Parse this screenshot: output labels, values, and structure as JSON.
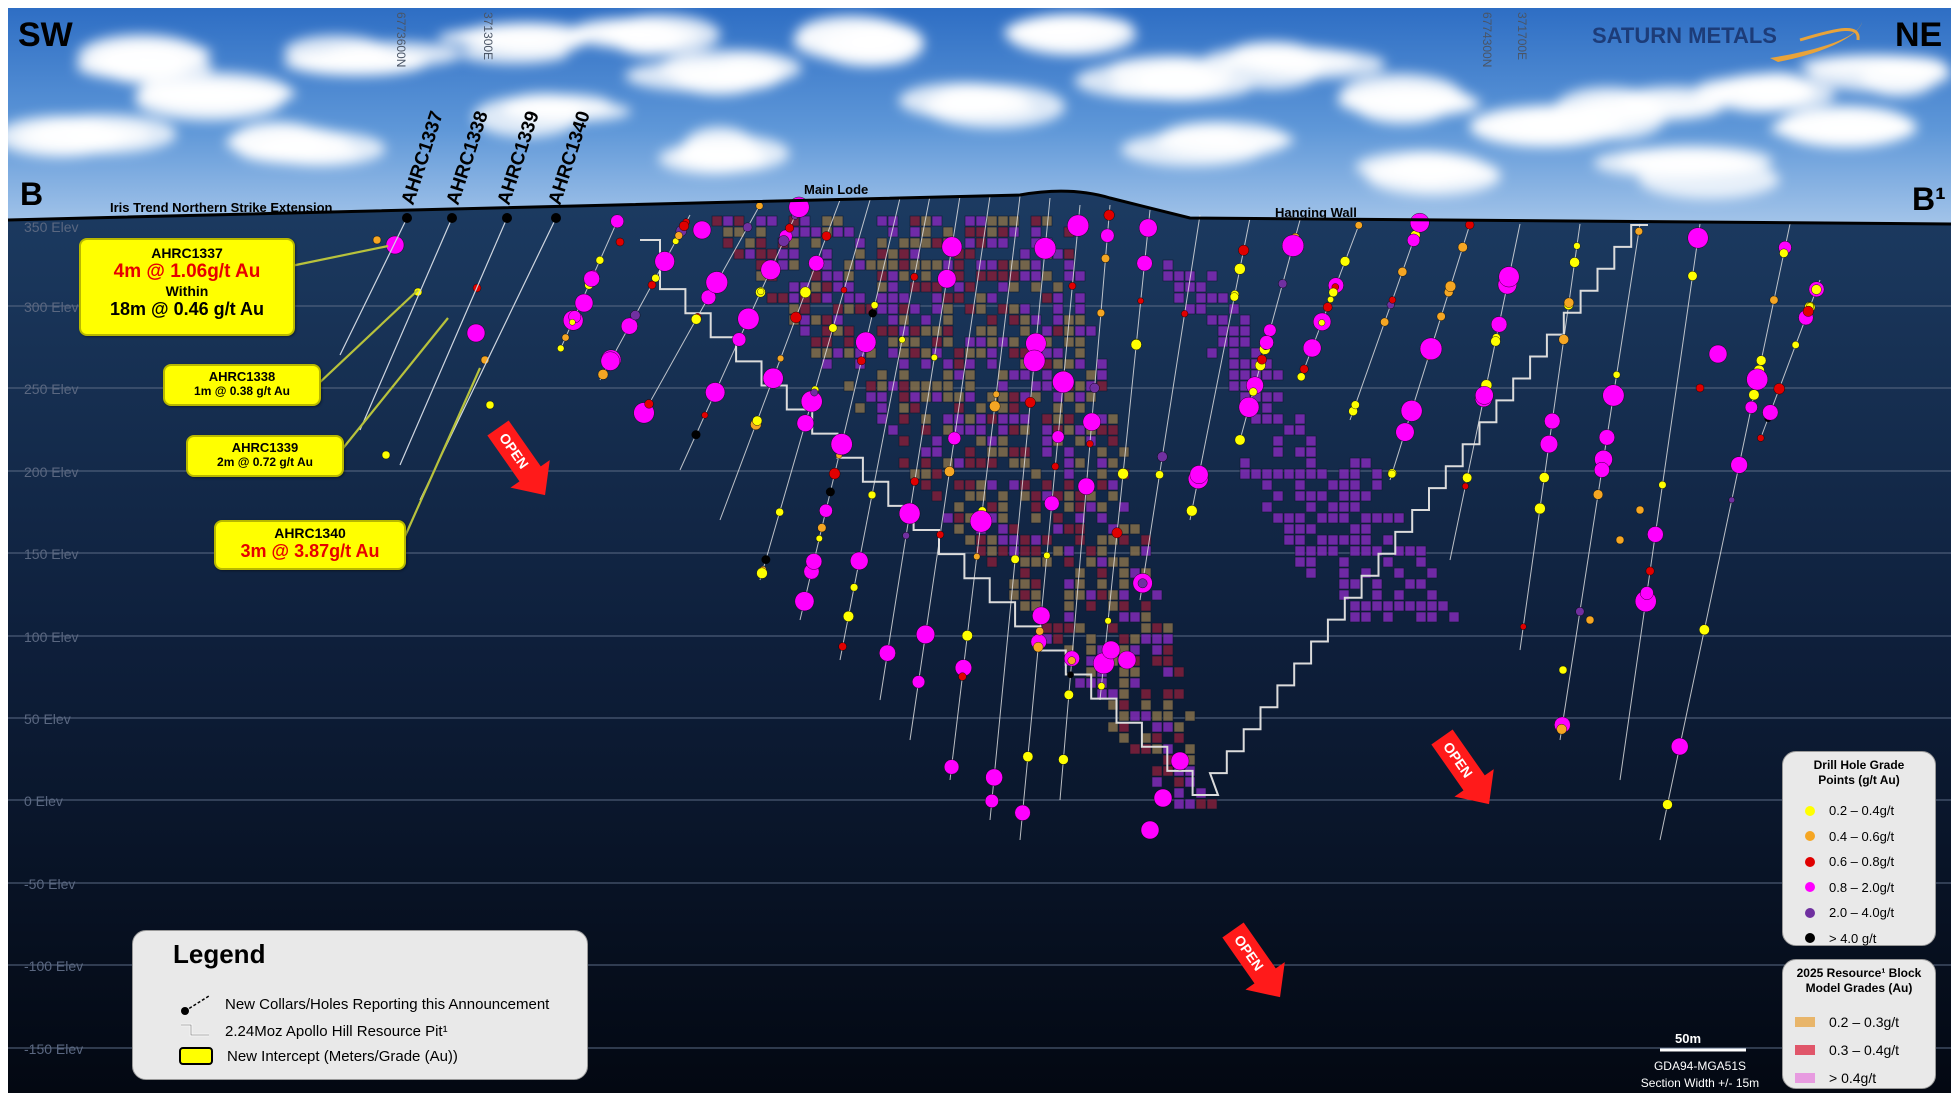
{
  "corners": {
    "left_dir": "SW",
    "right_dir": "NE",
    "section_start": "B",
    "section_end": "B¹"
  },
  "brand": {
    "name": "SATURN METALS",
    "accent": "#e8a33a"
  },
  "northings": [
    "6773600N",
    "371300E",
    "6774300N",
    "371700E"
  ],
  "surface_labels": {
    "iris": "Iris Trend Northern Strike Extension",
    "main_lode": "Main Lode",
    "hanging_wall": "Hanging Wall"
  },
  "holes": [
    "AHRC1337",
    "AHRC1338",
    "AHRC1339",
    "AHRC1340"
  ],
  "elevations": [
    "350 Elev",
    "300 Elev",
    "250 Elev",
    "200 Elev",
    "150 Elev",
    "100 Elev",
    "50 Elev",
    "0 Elev",
    "-50 Elev",
    "-100 Elev",
    "-150 Elev"
  ],
  "callouts": {
    "c1337": {
      "hole": "AHRC1337",
      "line1": "4m @ 1.06g/t Au",
      "within": "Within",
      "line2": "18m @ 0.46 g/t Au"
    },
    "c1338": {
      "hole": "AHRC1338",
      "line1": "1m @ 0.38 g/t Au"
    },
    "c1339": {
      "hole": "AHRC1339",
      "line1": "2m @ 0.72 g/t Au"
    },
    "c1340": {
      "hole": "AHRC1340",
      "line1": "3m @ 3.87g/t Au"
    }
  },
  "open_label": "OPEN",
  "legend": {
    "title": "Legend",
    "items": [
      "New Collars/Holes Reporting this Announcement",
      "2.24Moz Apollo Hill Resource Pit¹",
      "New Intercept (Meters/Grade (Au))"
    ]
  },
  "grade_points": {
    "title_line1": "Drill Hole Grade",
    "title_line2": "Points (g/t Au)",
    "items": [
      {
        "label": "0.2 – 0.4g/t",
        "color": "#ffff00"
      },
      {
        "label": "0.4 – 0.6g/t",
        "color": "#f5a623"
      },
      {
        "label": "0.6 – 0.8g/t",
        "color": "#e00000"
      },
      {
        "label": "0.8 – 2.0g/t",
        "color": "#ff00ff"
      },
      {
        "label": "2.0 – 4.0g/t",
        "color": "#7030a0"
      },
      {
        "label": "> 4.0 g/t",
        "color": "#000000"
      }
    ]
  },
  "block_model": {
    "title_line1": "2025 Resource¹ Block",
    "title_line2": "Model Grades (Au)",
    "items": [
      {
        "label": "0.2 – 0.3g/t",
        "color": "#e8b56a"
      },
      {
        "label": "0.3 – 0.4g/t",
        "color": "#e0566a"
      },
      {
        "label": "> 0.4g/t",
        "color": "#e79be0"
      }
    ]
  },
  "scale": {
    "label": "50m",
    "datum": "GDA94-MGA51S",
    "width": "Section Width +/- 15m"
  },
  "colors": {
    "block_low": "#7d6a4a",
    "block_mid": "#7a1f3a",
    "block_high": "#7a2ab0",
    "pit": "#dcdcdc"
  }
}
